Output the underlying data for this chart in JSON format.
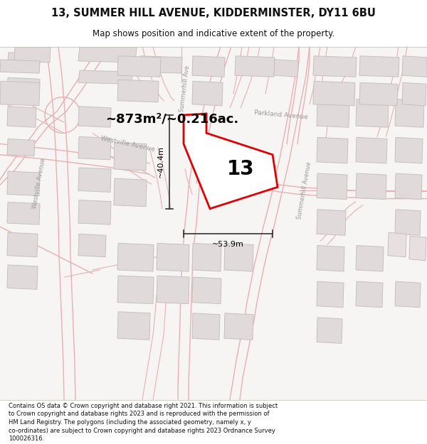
{
  "title": "13, SUMMER HILL AVENUE, KIDDERMINSTER, DY11 6BU",
  "subtitle": "Map shows position and indicative extent of the property.",
  "area_label": "~873m²/~0.216ac.",
  "number_label": "13",
  "dim_width": "~53.9m",
  "dim_height": "~40.4m",
  "footer_lines": [
    "Contains OS data © Crown copyright and database right 2021. This information is subject",
    "to Crown copyright and database rights 2023 and is reproduced with the permission of",
    "HM Land Registry. The polygons (including the associated geometry, namely x, y",
    "co-ordinates) are subject to Crown copyright and database rights 2023 Ordnance Survey",
    "100026316."
  ],
  "map_bg": "#f7f4f4",
  "road_line_color": "#e8b0b0",
  "road_fill_color": "#ffffff",
  "building_face": "#e0dada",
  "building_edge": "#c8c0c0",
  "plot_edge": "#dd0000",
  "plot_fill": "#ffffff",
  "dim_color": "#333333",
  "text_color": "#111111",
  "road_label_color": "#999999",
  "title_fontsize": 10.5,
  "subtitle_fontsize": 8.5,
  "area_fontsize": 13,
  "number_fontsize": 20,
  "dim_fontsize": 8,
  "road_label_fontsize": 6,
  "footer_fontsize": 6.0
}
